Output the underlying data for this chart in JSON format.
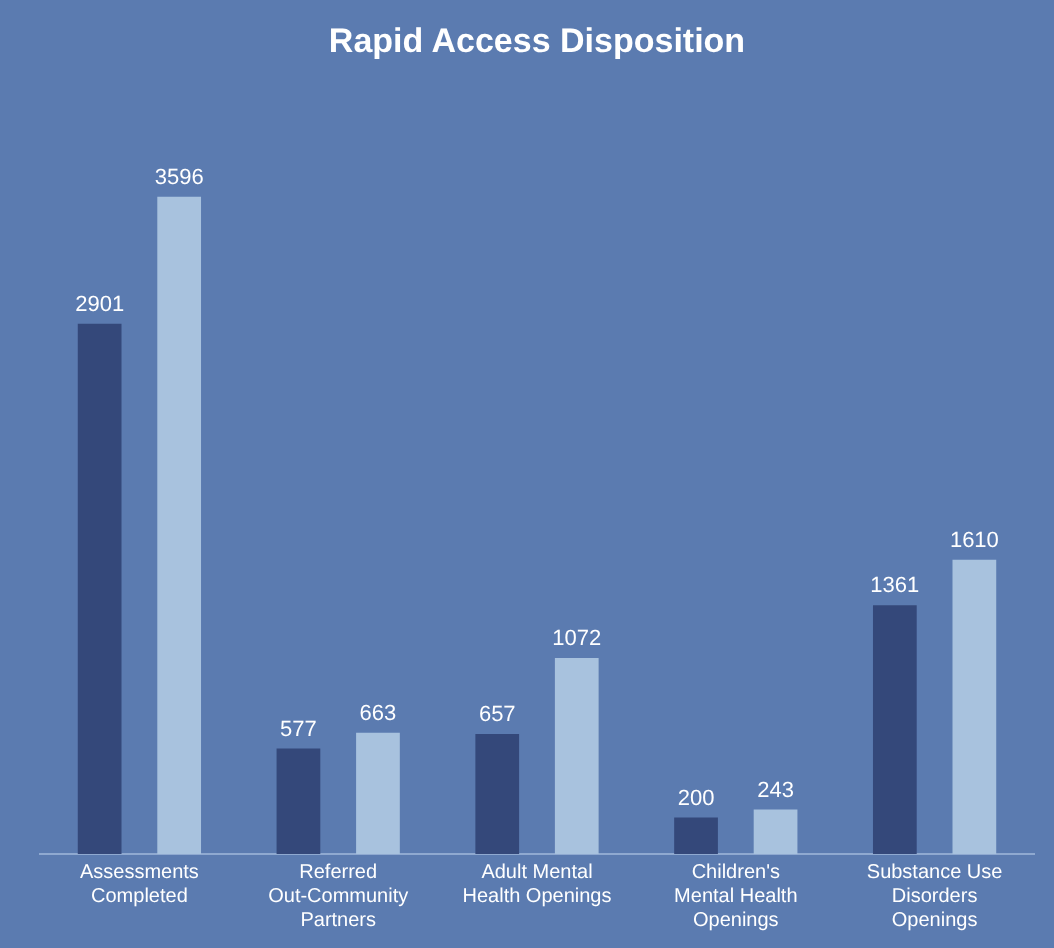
{
  "chart_data": {
    "type": "bar",
    "title": "Rapid Access Disposition",
    "categories": [
      "Assessments Completed",
      "Referred Out-Community Partners",
      "Adult Mental Health Openings",
      "Children's Mental Health Openings",
      "Substance Use Disorders Openings"
    ],
    "series": [
      {
        "color": "#34487a",
        "values": [
          2901,
          577,
          657,
          200,
          1361
        ]
      },
      {
        "color": "#a8c2de",
        "values": [
          3596,
          663,
          1072,
          243,
          1610
        ]
      }
    ],
    "data_labels": true,
    "grid": false,
    "legend": false
  }
}
